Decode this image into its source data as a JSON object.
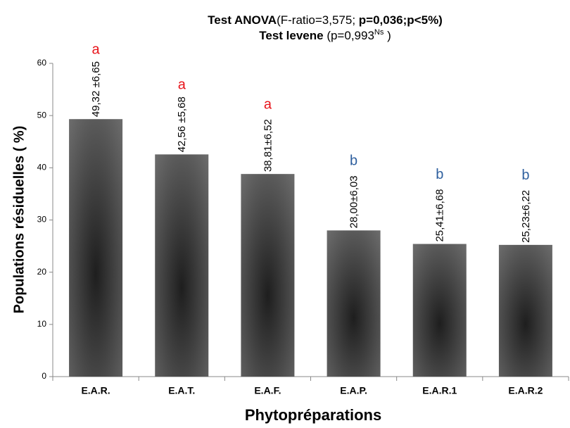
{
  "chart_data": {
    "type": "bar",
    "title": [
      {
        "text": "Test ANOVA",
        "bold": true
      },
      {
        "text": "(F-ratio=3,575; ",
        "bold": false
      },
      {
        "text": "p=0,036;p<5%)",
        "bold": true
      }
    ],
    "subtitle": [
      {
        "text": "Test levene",
        "bold": true
      },
      {
        "text": " (p=0,993",
        "bold": false
      },
      {
        "text": "Ns",
        "bold": false,
        "sup": true
      },
      {
        "text": " )",
        "bold": false
      }
    ],
    "x_label": "Phytopréparations",
    "y_label": "Populations résiduelles ( %)",
    "categories": [
      "E.A.R.",
      "E.A.T.",
      "E.A.F.",
      "E.A.P.",
      "E.A.R.1",
      "E.A.R.2"
    ],
    "values": [
      49.32,
      42.56,
      38.81,
      28.0,
      25.41,
      25.23
    ],
    "value_labels": [
      "49,32 ±6,65",
      "42,56 ±5,68",
      "38,81±6,52",
      "28,00±6,03",
      "25,41±6,68",
      "25,23±6,22"
    ],
    "group_letters": [
      "a",
      "a",
      "a",
      "b",
      "b",
      "b"
    ],
    "group_letter_colors": [
      "#e8141b",
      "#e8141b",
      "#e8141b",
      "#2e5f9e",
      "#2e5f9e",
      "#2e5f9e"
    ],
    "color": "#3a3a3a",
    "ylim": [
      0,
      60
    ],
    "yticks": [
      0,
      10,
      20,
      30,
      40,
      50,
      60
    ],
    "grid": false
  }
}
